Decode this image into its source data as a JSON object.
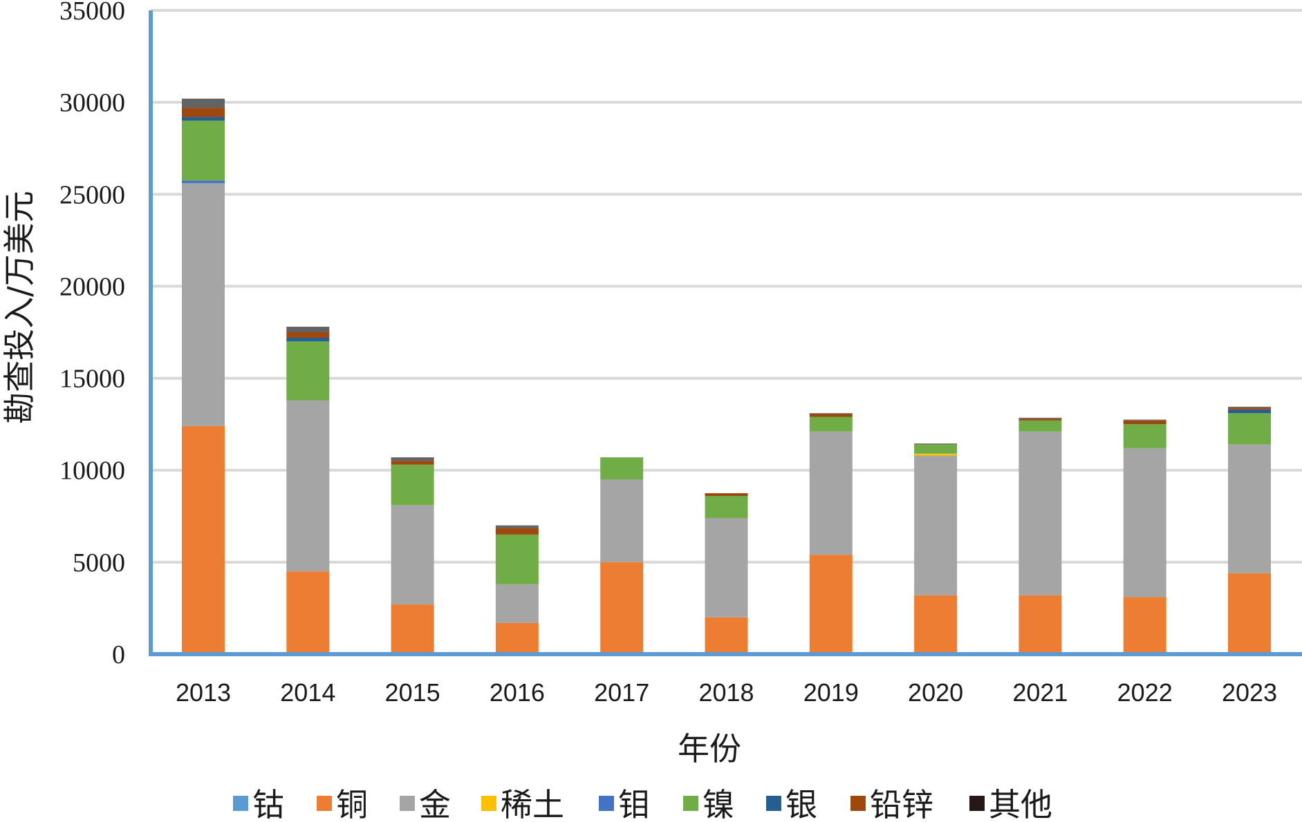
{
  "chart_data": {
    "type": "bar",
    "stacked": true,
    "xlabel": "年份",
    "ylabel": "勘查投入/万美元",
    "ylim": [
      0,
      35000
    ],
    "yticks": [
      0,
      5000,
      10000,
      15000,
      20000,
      25000,
      30000,
      35000
    ],
    "grid": true,
    "legend_position": "bottom",
    "categories": [
      "2013",
      "2014",
      "2015",
      "2016",
      "2017",
      "2018",
      "2019",
      "2020",
      "2021",
      "2022",
      "2023"
    ],
    "series": [
      {
        "name": "钴",
        "color": "#5b9bd5",
        "values": [
          0,
          0,
          0,
          0,
          0,
          0,
          0,
          0,
          0,
          0,
          0
        ]
      },
      {
        "name": "铜",
        "color": "#ed7d31",
        "values": [
          12400,
          4500,
          2700,
          1700,
          5000,
          2000,
          5400,
          3200,
          3200,
          3100,
          4400
        ]
      },
      {
        "name": "金",
        "color": "#a5a5a5",
        "values": [
          13200,
          9300,
          5400,
          2100,
          4500,
          5400,
          6700,
          7600,
          8900,
          8100,
          7000
        ]
      },
      {
        "name": "稀土",
        "color": "#ffc000",
        "values": [
          0,
          0,
          0,
          0,
          0,
          0,
          0,
          100,
          0,
          0,
          0
        ]
      },
      {
        "name": "钼",
        "color": "#4472c4",
        "values": [
          150,
          0,
          0,
          0,
          0,
          0,
          0,
          0,
          0,
          0,
          0
        ]
      },
      {
        "name": "镍",
        "color": "#70ad47",
        "values": [
          3250,
          3200,
          2200,
          2700,
          1200,
          1200,
          800,
          500,
          600,
          1300,
          1700
        ]
      },
      {
        "name": "银",
        "color": "#255e91",
        "values": [
          200,
          200,
          0,
          0,
          0,
          0,
          0,
          0,
          0,
          0,
          200
        ]
      },
      {
        "name": "铅锌",
        "color": "#9e480e",
        "values": [
          500,
          300,
          200,
          350,
          0,
          150,
          150,
          0,
          100,
          200,
          100
        ]
      },
      {
        "name": "其他",
        "color": "#636363",
        "values": [
          500,
          300,
          200,
          150,
          0,
          0,
          50,
          50,
          50,
          50,
          50
        ]
      }
    ],
    "legend_marker_colors": [
      "#5b9bd5",
      "#ed7d31",
      "#a5a5a5",
      "#ffc000",
      "#4472c4",
      "#70ad47",
      "#255e91",
      "#9e480e",
      "#231815"
    ]
  },
  "colors": {
    "axis": "#5b9bd5",
    "grid": "#d9d9d9"
  }
}
